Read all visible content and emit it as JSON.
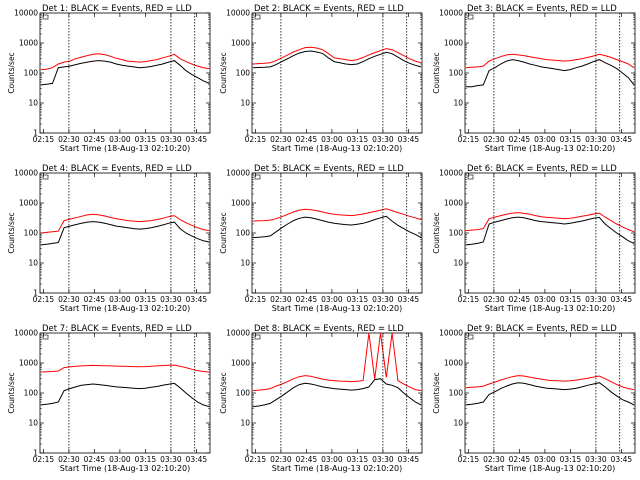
{
  "chart_data": {
    "type": "line",
    "layout": "3x3 grid",
    "yscale": "log",
    "ylim": [
      1,
      10000
    ],
    "ylabel": "Counts/sec",
    "xlabel": "Start Time (18-Aug-13 02:10:20)",
    "x_ticks": [
      "02:15",
      "02:30",
      "02:45",
      "03:00",
      "03:15",
      "03:30",
      "03:45"
    ],
    "y_ticks": [
      "1",
      "10",
      "100",
      "1000",
      "10000"
    ],
    "series_colors": {
      "events": "#000000",
      "lld": "#ff0000"
    },
    "panels": [
      {
        "title": "Det 1: BLACK = Events, RED = LLD",
        "lld": [
          130,
          135,
          150,
          200,
          230,
          250,
          300,
          340,
          380,
          420,
          440,
          410,
          360,
          310,
          280,
          250,
          240,
          230,
          240,
          260,
          280,
          320,
          360,
          420,
          300,
          240,
          200,
          170,
          150,
          140
        ],
        "events": [
          40,
          42,
          45,
          150,
          160,
          170,
          190,
          210,
          230,
          250,
          260,
          250,
          230,
          200,
          180,
          170,
          160,
          150,
          155,
          165,
          180,
          200,
          230,
          260,
          180,
          120,
          90,
          70,
          55,
          45
        ]
      },
      {
        "title": "Det 2: BLACK = Events, RED = LLD",
        "lld": [
          200,
          205,
          210,
          220,
          260,
          320,
          400,
          500,
          600,
          700,
          720,
          680,
          600,
          450,
          320,
          300,
          280,
          260,
          280,
          330,
          400,
          480,
          560,
          650,
          600,
          480,
          380,
          300,
          250,
          220
        ],
        "events": [
          150,
          152,
          155,
          160,
          190,
          240,
          300,
          380,
          460,
          520,
          540,
          500,
          450,
          320,
          240,
          220,
          200,
          190,
          200,
          240,
          300,
          360,
          420,
          490,
          440,
          340,
          260,
          210,
          180,
          160
        ]
      },
      {
        "title": "Det 3: BLACK = Events, RED = LLD",
        "lld": [
          150,
          155,
          160,
          170,
          250,
          300,
          350,
          400,
          420,
          400,
          380,
          350,
          320,
          300,
          280,
          270,
          260,
          250,
          260,
          280,
          300,
          330,
          370,
          420,
          380,
          330,
          280,
          240,
          200,
          150
        ],
        "events": [
          35,
          35,
          38,
          40,
          120,
          150,
          200,
          250,
          280,
          260,
          230,
          200,
          180,
          160,
          150,
          140,
          130,
          120,
          130,
          150,
          170,
          200,
          240,
          280,
          220,
          180,
          140,
          100,
          70,
          40
        ]
      },
      {
        "title": "Det 4: BLACK = Events, RED = LLD",
        "lld": [
          100,
          105,
          110,
          115,
          260,
          290,
          320,
          360,
          400,
          420,
          400,
          370,
          330,
          300,
          280,
          260,
          250,
          240,
          250,
          260,
          280,
          310,
          350,
          380,
          280,
          220,
          180,
          150,
          130,
          120
        ],
        "events": [
          40,
          42,
          45,
          48,
          150,
          170,
          190,
          210,
          230,
          240,
          230,
          210,
          190,
          170,
          160,
          150,
          140,
          135,
          140,
          150,
          165,
          185,
          210,
          230,
          140,
          100,
          80,
          65,
          55,
          50
        ]
      },
      {
        "title": "Det 5: BLACK = Events, RED = LLD",
        "lld": [
          250,
          255,
          260,
          270,
          300,
          350,
          420,
          500,
          580,
          620,
          600,
          560,
          500,
          450,
          420,
          400,
          390,
          380,
          400,
          430,
          470,
          520,
          580,
          640,
          560,
          480,
          420,
          360,
          320,
          280
        ],
        "events": [
          70,
          72,
          75,
          80,
          110,
          150,
          200,
          260,
          310,
          340,
          320,
          290,
          260,
          230,
          210,
          200,
          190,
          185,
          195,
          210,
          240,
          280,
          320,
          360,
          250,
          180,
          140,
          110,
          90,
          70
        ]
      },
      {
        "title": "Det 6: BLACK = Events, RED = LLD",
        "lld": [
          120,
          125,
          130,
          140,
          300,
          340,
          380,
          420,
          460,
          480,
          450,
          420,
          380,
          350,
          330,
          320,
          310,
          300,
          310,
          330,
          360,
          390,
          430,
          460,
          340,
          260,
          200,
          160,
          130,
          110
        ],
        "events": [
          40,
          42,
          45,
          50,
          200,
          230,
          260,
          290,
          320,
          340,
          320,
          290,
          260,
          240,
          230,
          220,
          210,
          200,
          210,
          230,
          250,
          280,
          310,
          330,
          200,
          140,
          100,
          75,
          55,
          45
        ]
      },
      {
        "title": "Det 7: BLACK = Events, RED = LLD",
        "lld": [
          500,
          510,
          520,
          540,
          700,
          740,
          780,
          800,
          820,
          830,
          820,
          810,
          800,
          790,
          780,
          770,
          760,
          750,
          760,
          780,
          800,
          820,
          840,
          850,
          780,
          700,
          620,
          560,
          520,
          500
        ],
        "events": [
          40,
          42,
          45,
          50,
          120,
          140,
          160,
          180,
          190,
          200,
          190,
          180,
          170,
          160,
          155,
          150,
          145,
          140,
          145,
          155,
          165,
          180,
          195,
          210,
          150,
          100,
          70,
          50,
          40,
          35
        ]
      },
      {
        "title": "Det 8: BLACK = Events, RED = LLD",
        "lld": [
          120,
          125,
          130,
          140,
          170,
          200,
          240,
          300,
          350,
          380,
          360,
          320,
          290,
          270,
          260,
          250,
          245,
          240,
          245,
          260,
          10000,
          290,
          10000,
          330,
          10000,
          260,
          200,
          160,
          130,
          120
        ],
        "events": [
          35,
          37,
          40,
          45,
          60,
          80,
          110,
          150,
          190,
          210,
          200,
          180,
          160,
          150,
          140,
          135,
          130,
          125,
          130,
          140,
          160,
          280,
          300,
          200,
          180,
          150,
          100,
          70,
          50,
          40
        ]
      },
      {
        "title": "Det 9: BLACK = Events, RED = LLD",
        "lld": [
          150,
          155,
          160,
          170,
          200,
          230,
          270,
          310,
          350,
          380,
          370,
          340,
          310,
          290,
          270,
          260,
          255,
          250,
          255,
          270,
          290,
          310,
          340,
          370,
          300,
          240,
          190,
          160,
          140,
          130
        ],
        "events": [
          40,
          42,
          45,
          50,
          90,
          110,
          140,
          170,
          200,
          220,
          210,
          190,
          170,
          155,
          145,
          140,
          135,
          130,
          135,
          145,
          160,
          180,
          200,
          220,
          160,
          110,
          80,
          60,
          50,
          40
        ]
      }
    ]
  }
}
